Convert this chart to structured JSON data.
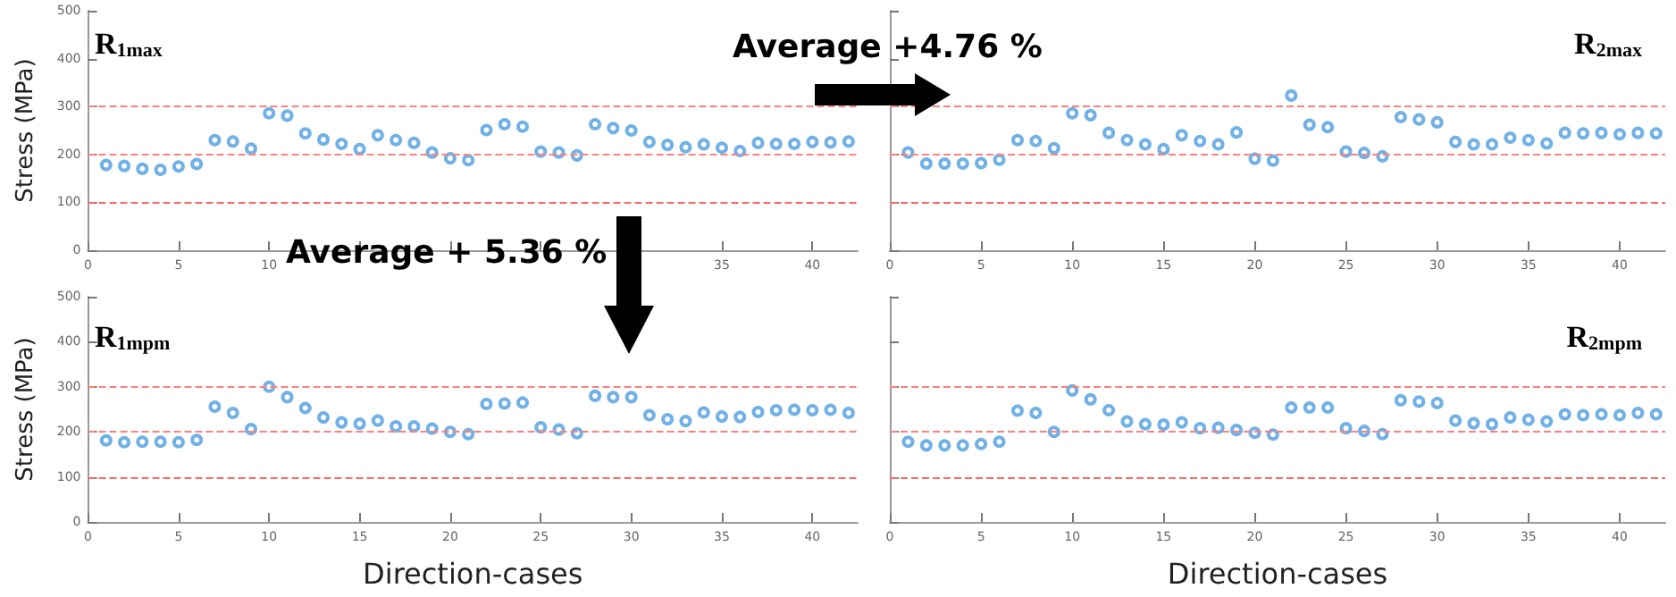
{
  "chart_data": [
    {
      "type": "scatter",
      "title": "R$_{1max}$",
      "ylabel": "Stress (MPa)",
      "annotations": [
        "Average +4.76 %",
        "Average + 5.36 %"
      ],
      "x": [
        1,
        2,
        3,
        4,
        5,
        6,
        7,
        8,
        9,
        10,
        11,
        12,
        13,
        14,
        15,
        16,
        17,
        18,
        19,
        20,
        21,
        22,
        23,
        24,
        25,
        26,
        27,
        28,
        29,
        30,
        31,
        32,
        33,
        34,
        35,
        36,
        37,
        38,
        39,
        40,
        41,
        42
      ],
      "series": [
        {
          "color": "#4d9de0",
          "values": [
            178,
            176,
            170,
            168,
            175,
            180,
            230,
            227,
            212,
            286,
            281,
            244,
            231,
            222,
            211,
            240,
            230,
            224,
            204,
            192,
            188,
            251,
            263,
            258,
            206,
            204,
            198,
            263,
            255,
            250,
            226,
            220,
            215,
            221,
            214,
            207,
            224,
            222,
            222,
            226,
            225,
            227
          ]
        }
      ],
      "xlim": [
        0,
        42.5
      ],
      "xticks": [
        0,
        5,
        10,
        {
          "value": 15,
          "label": null
        },
        {
          "value": 20,
          "label": null
        },
        {
          "value": 25,
          "label": null
        },
        {
          "value": 30,
          "label": null
        },
        35,
        40
      ],
      "ylim": [
        0,
        500
      ],
      "yticks": [
        0,
        100,
        200,
        300,
        400,
        500
      ],
      "marker": "circle",
      "grid": false,
      "ref_lines": [
        {
          "axis": "y",
          "value": 100,
          "color": "#ff6666",
          "line_style": "dashed"
        },
        {
          "axis": "y",
          "value": 200,
          "color": "#ff8080",
          "line_style": "dashed"
        },
        {
          "axis": "y",
          "value": 300,
          "color": "#ff8080",
          "line_style": "dashed"
        }
      ]
    },
    {
      "type": "scatter",
      "title": "R$_{2max}$",
      "x": [
        1,
        2,
        3,
        4,
        5,
        6,
        7,
        8,
        9,
        10,
        11,
        12,
        13,
        14,
        15,
        16,
        17,
        18,
        19,
        20,
        21,
        22,
        23,
        24,
        25,
        26,
        27,
        28,
        29,
        30,
        31,
        32,
        33,
        34,
        35,
        36,
        37,
        38,
        39,
        40,
        41,
        42
      ],
      "series": [
        {
          "color": "#4d9de0",
          "values": [
            204,
            181,
            181,
            181,
            182,
            189,
            230,
            228,
            213,
            286,
            282,
            245,
            230,
            221,
            211,
            240,
            228,
            221,
            246,
            191,
            187,
            323,
            262,
            257,
            206,
            203,
            196,
            278,
            273,
            267,
            226,
            221,
            221,
            235,
            230,
            223,
            245,
            244,
            245,
            242,
            245,
            244
          ]
        }
      ],
      "xlim": [
        0,
        42.5
      ],
      "xticks": [
        0,
        5,
        10,
        15,
        20,
        25,
        30,
        35,
        40
      ],
      "ylim": [
        0,
        500
      ],
      "yticks": [
        0,
        100,
        200,
        300,
        400,
        500
      ],
      "tick_labels": "x",
      "marker": "circle",
      "grid": false,
      "ref_lines": [
        {
          "axis": "y",
          "value": 100,
          "color": "#ff6666",
          "line_style": "dashed"
        },
        {
          "axis": "y",
          "value": 200,
          "color": "#ff8080",
          "line_style": "dashed"
        },
        {
          "axis": "y",
          "value": 300,
          "color": "#ff8080",
          "line_style": "dashed"
        }
      ]
    },
    {
      "type": "scatter",
      "title": "R$_{1mpm}$",
      "ylabel": "Stress (MPa)",
      "xlabel": "Direction-cases",
      "x": [
        1,
        2,
        3,
        4,
        5,
        6,
        7,
        8,
        9,
        10,
        11,
        12,
        13,
        14,
        15,
        16,
        17,
        18,
        19,
        20,
        21,
        22,
        23,
        24,
        25,
        26,
        27,
        28,
        29,
        30,
        31,
        32,
        33,
        34,
        35,
        36,
        37,
        38,
        39,
        40,
        41,
        42
      ],
      "series": [
        {
          "color": "#4d9de0",
          "values": [
            181,
            177,
            178,
            178,
            177,
            182,
            256,
            242,
            206,
            300,
            277,
            253,
            232,
            221,
            218,
            225,
            212,
            212,
            207,
            200,
            195,
            262,
            263,
            265,
            210,
            205,
            197,
            280,
            277,
            277,
            237,
            228,
            224,
            243,
            234,
            233,
            244,
            248,
            249,
            248,
            249,
            242
          ]
        }
      ],
      "xlim": [
        0,
        42.5
      ],
      "xticks": [
        0,
        5,
        10,
        15,
        20,
        25,
        30,
        35,
        40
      ],
      "ylim": [
        0,
        500
      ],
      "yticks": [
        0,
        100,
        200,
        300,
        400,
        500
      ],
      "marker": "circle",
      "grid": false,
      "ref_lines": [
        {
          "axis": "y",
          "value": 100,
          "color": "#ff6666",
          "line_style": "dashed"
        },
        {
          "axis": "y",
          "value": 200,
          "color": "#ff8080",
          "line_style": "dashed"
        },
        {
          "axis": "y",
          "value": 300,
          "color": "#ff8080",
          "line_style": "dashed"
        }
      ]
    },
    {
      "type": "scatter",
      "title": "R$_{2mpm}$",
      "xlabel": "Direction-cases",
      "x": [
        1,
        2,
        3,
        4,
        5,
        6,
        7,
        8,
        9,
        10,
        11,
        12,
        13,
        14,
        15,
        16,
        17,
        18,
        19,
        20,
        21,
        22,
        23,
        24,
        25,
        26,
        27,
        28,
        29,
        30,
        31,
        32,
        33,
        34,
        35,
        36,
        37,
        38,
        39,
        40,
        41,
        42
      ],
      "series": [
        {
          "color": "#4d9de0",
          "values": [
            178,
            170,
            170,
            170,
            173,
            178,
            247,
            242,
            200,
            292,
            272,
            248,
            223,
            217,
            216,
            221,
            208,
            209,
            204,
            198,
            194,
            254,
            254,
            254,
            208,
            202,
            195,
            270,
            267,
            264,
            225,
            219,
            217,
            232,
            227,
            223,
            239,
            237,
            239,
            237,
            242,
            239
          ]
        }
      ],
      "xlim": [
        0,
        42.5
      ],
      "xticks": [
        0,
        5,
        10,
        15,
        20,
        25,
        30,
        35,
        40
      ],
      "ylim": [
        0,
        500
      ],
      "yticks": [
        0,
        100,
        200,
        300,
        400,
        500
      ],
      "tick_labels": "x",
      "marker": "circle",
      "grid": false,
      "ref_lines": [
        {
          "axis": "y",
          "value": 100,
          "color": "#ff6666",
          "line_style": "dashed"
        },
        {
          "axis": "y",
          "value": 200,
          "color": "#ff8080",
          "line_style": "dashed"
        },
        {
          "axis": "y",
          "value": 300,
          "color": "#ff8080",
          "line_style": "dashed"
        }
      ]
    }
  ]
}
